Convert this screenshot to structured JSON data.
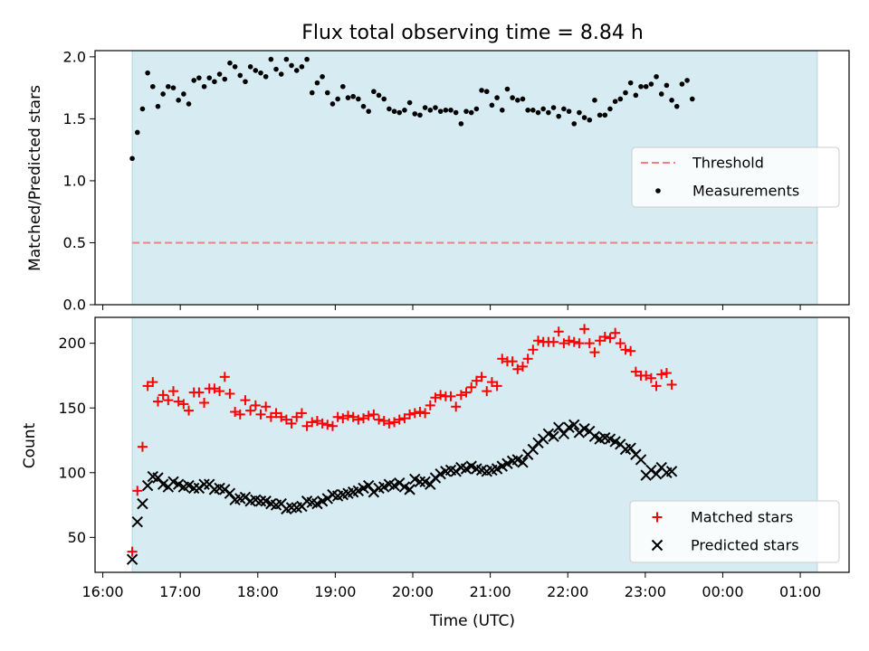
{
  "colors": {
    "shade": "#add8e6",
    "threshold": "#f08080",
    "measurement": "#000000",
    "matched": "#ff0000",
    "predicted": "#000000"
  },
  "chart_data": [
    {
      "type": "scatter",
      "title": "Flux total observing time = 8.84 h",
      "ylabel": "Matched/Predicted stars",
      "xlim_hours": [
        15.9,
        25.63
      ],
      "ylim": [
        0,
        2.05
      ],
      "yticks": [
        0.0,
        0.5,
        1.0,
        1.5,
        2.0
      ],
      "ytick_labels": [
        "0.0",
        "0.5",
        "1.0",
        "1.5",
        "2.0"
      ],
      "shaded_span_hours": [
        16.38,
        25.22
      ],
      "threshold": 0.5,
      "legend": {
        "position": "center-right",
        "entries": [
          "Threshold",
          "Measurements"
        ]
      },
      "series": [
        {
          "name": "Measurements",
          "x_start_hour": 16.38,
          "x_step_hours": 0.0663,
          "values": [
            1.18,
            1.39,
            1.58,
            1.87,
            1.76,
            1.6,
            1.7,
            1.76,
            1.75,
            1.65,
            1.7,
            1.62,
            1.81,
            1.83,
            1.76,
            1.83,
            1.8,
            1.86,
            1.82,
            1.95,
            1.92,
            1.85,
            1.8,
            1.92,
            1.89,
            1.87,
            1.84,
            1.98,
            1.9,
            1.86,
            1.98,
            1.93,
            1.89,
            1.92,
            1.98,
            1.71,
            1.79,
            1.84,
            1.71,
            1.62,
            1.66,
            1.76,
            1.67,
            1.68,
            1.66,
            1.6,
            1.56,
            1.72,
            1.69,
            1.66,
            1.58,
            1.56,
            1.55,
            1.57,
            1.63,
            1.54,
            1.53,
            1.59,
            1.57,
            1.59,
            1.56,
            1.57,
            1.57,
            1.55,
            1.46,
            1.56,
            1.55,
            1.58,
            1.73,
            1.72,
            1.61,
            1.67,
            1.57,
            1.74,
            1.67,
            1.65,
            1.66,
            1.57,
            1.57,
            1.55,
            1.58,
            1.55,
            1.59,
            1.52,
            1.58,
            1.56,
            1.46,
            1.55,
            1.51,
            1.49,
            1.65,
            1.53,
            1.53,
            1.58,
            1.64,
            1.66,
            1.71,
            1.79,
            1.69,
            1.76,
            1.76,
            1.78,
            1.84,
            1.7,
            1.77,
            1.65,
            1.6,
            1.78,
            1.81,
            1.66
          ]
        }
      ]
    },
    {
      "type": "scatter",
      "xlabel": "Time (UTC)",
      "ylabel": "Count",
      "xlim_hours": [
        15.9,
        25.63
      ],
      "ylim": [
        23,
        220
      ],
      "yticks": [
        50,
        100,
        150,
        200
      ],
      "ytick_labels": [
        "50",
        "100",
        "150",
        "200"
      ],
      "xticks_hours": [
        16,
        17,
        18,
        19,
        20,
        21,
        22,
        23,
        24,
        25
      ],
      "xtick_labels": [
        "16:00",
        "17:00",
        "18:00",
        "19:00",
        "20:00",
        "21:00",
        "22:00",
        "23:00",
        "00:00",
        "01:00"
      ],
      "shaded_span_hours": [
        16.38,
        25.22
      ],
      "legend": {
        "position": "bottom-right",
        "entries": [
          "Matched stars",
          "Predicted stars"
        ]
      },
      "series": [
        {
          "name": "Matched stars",
          "marker": "plus",
          "x_start_hour": 16.38,
          "x_step_hours": 0.0663,
          "values": [
            39,
            86,
            120,
            167,
            170,
            155,
            160,
            156,
            163,
            155,
            153,
            148,
            162,
            162,
            154,
            165,
            165,
            163,
            174,
            161,
            147,
            145,
            156,
            148,
            152,
            145,
            151,
            143,
            146,
            143,
            141,
            138,
            143,
            146,
            136,
            139,
            140,
            138,
            137,
            136,
            143,
            142,
            144,
            143,
            141,
            142,
            144,
            145,
            141,
            140,
            138,
            139,
            141,
            142,
            145,
            146,
            147,
            146,
            152,
            158,
            160,
            159,
            159,
            151,
            160,
            162,
            166,
            171,
            174,
            163,
            170,
            167,
            188,
            186,
            186,
            180,
            182,
            188,
            195,
            202,
            201,
            201,
            201,
            209,
            200,
            202,
            201,
            200,
            211,
            200,
            193,
            202,
            205,
            204,
            208,
            200,
            195,
            194,
            178,
            175,
            175,
            173,
            167,
            176,
            177,
            168
          ]
        },
        {
          "name": "Predicted stars",
          "marker": "x",
          "x_start_hour": 16.38,
          "x_step_hours": 0.0663,
          "values": [
            33,
            62,
            76,
            90,
            97,
            96,
            91,
            89,
            93,
            91,
            89,
            90,
            88,
            88,
            91,
            91,
            87,
            88,
            87,
            84,
            79,
            80,
            81,
            78,
            79,
            78,
            78,
            76,
            75,
            76,
            72,
            73,
            73,
            74,
            78,
            77,
            76,
            78,
            80,
            83,
            82,
            83,
            84,
            85,
            86,
            88,
            90,
            85,
            88,
            89,
            91,
            90,
            92,
            89,
            87,
            95,
            93,
            93,
            91,
            96,
            99,
            101,
            102,
            101,
            104,
            103,
            105,
            103,
            102,
            101,
            102,
            103,
            105,
            107,
            109,
            110,
            108,
            114,
            118,
            123,
            126,
            130,
            128,
            135,
            130,
            135,
            137,
            131,
            134,
            132,
            128,
            126,
            127,
            126,
            124,
            122,
            118,
            119,
            114,
            110,
            98,
            102,
            99,
            104,
            100,
            101
          ]
        }
      ]
    }
  ]
}
